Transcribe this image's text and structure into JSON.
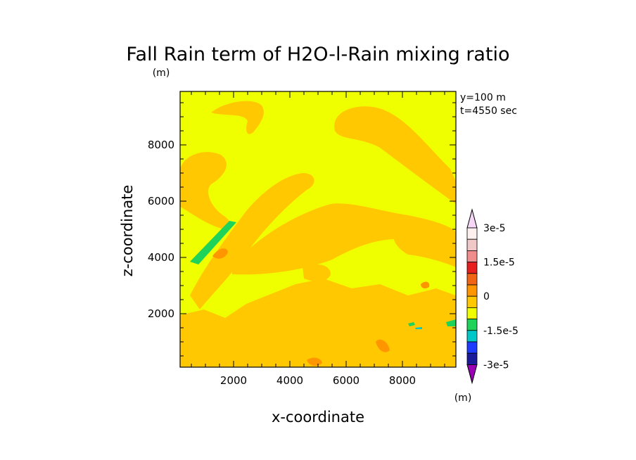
{
  "chart_data": {
    "type": "heatmap",
    "title": "Fall Rain term of H2O-l-Rain mixing ratio",
    "units_label": "(m)",
    "xlabel": "x-coordinate",
    "ylabel": "z-coordinate",
    "xlim": [
      100,
      9900
    ],
    "ylim": [
      100,
      9900
    ],
    "xticks": [
      2000,
      4000,
      6000,
      8000
    ],
    "yticks": [
      2000,
      4000,
      6000,
      8000
    ],
    "xtick_labels": [
      "2000",
      "4000",
      "6000",
      "8000"
    ],
    "ytick_labels": [
      "2000",
      "4000",
      "6000",
      "8000"
    ],
    "info": [
      "y=100 m",
      "t=4550 sec"
    ],
    "background_level": "0 to 5e-6",
    "colorbar": {
      "levels": [
        -3e-05,
        -2.5e-05,
        -2e-05,
        -1.5e-05,
        -1e-05,
        -5e-06,
        0,
        5e-06,
        1e-05,
        1.5e-05,
        2e-05,
        2.5e-05,
        3e-05
      ],
      "colors": [
        "#9a00b4",
        "#1a1a9a",
        "#1e3cff",
        "#00c8c8",
        "#1ed25a",
        "#f0ff00",
        "#ffc800",
        "#ff9600",
        "#f06414",
        "#e61e1e",
        "#f08c8c",
        "#f0c8c8",
        "#fff0f0",
        "#f5d7f5"
      ],
      "labels": [
        "3e-5",
        "1.5e-5",
        "0",
        "-1.5e-5",
        "-3e-5"
      ],
      "unit": "(m)"
    }
  }
}
